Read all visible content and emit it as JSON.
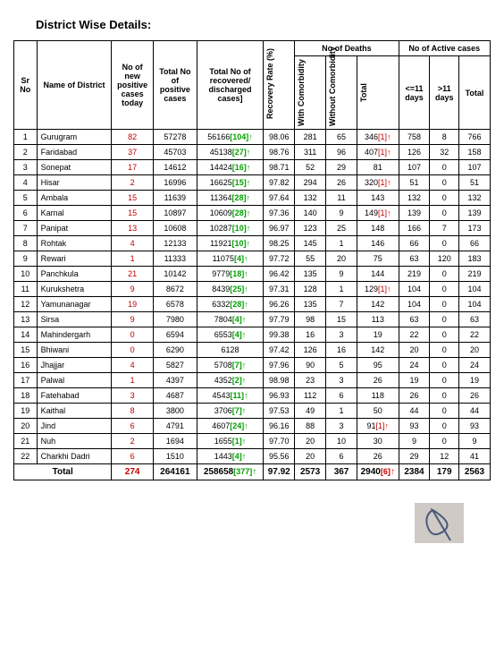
{
  "title": "District Wise Details:",
  "columns": {
    "sr": "Sr No",
    "name": "Name of District",
    "new": "No of new positive cases today",
    "totalpos": "Total No of positive cases",
    "recovered": "Total No of recovered/ discharged cases]",
    "rate": "Recovery Rate (%)",
    "deaths_group": "No of Deaths",
    "with_com": "With Comorbidity",
    "without_com": "Without Comorbidity",
    "deaths_total": "Total",
    "active_group": "No of Active cases",
    "le11": "<=11 days",
    "gt11": ">11 days",
    "active_total": "Total"
  },
  "col_widths": {
    "sr": "22px",
    "name": "70px",
    "new": "40px",
    "totalpos": "40px",
    "recovered": "62px",
    "rate": "30px",
    "withc": "30px",
    "withoutc": "30px",
    "dtotal": "38px",
    "le11": "30px",
    "gt11": "28px",
    "atotal": "30px"
  },
  "rows": [
    {
      "sr": 1,
      "name": "Gurugram",
      "new": "82",
      "totalpos": "57278",
      "rec": "56166",
      "recb": "[104]",
      "recarrow": "↑",
      "rate": "98.06",
      "wc": "281",
      "woc": "65",
      "dt": "346",
      "dtb": "[1]",
      "dtarrow": "↑",
      "le": "758",
      "gt": "8",
      "at": "766"
    },
    {
      "sr": 2,
      "name": "Faridabad",
      "new": "37",
      "totalpos": "45703",
      "rec": "45138",
      "recb": "[27]",
      "recarrow": "↑",
      "rate": "98.76",
      "wc": "311",
      "woc": "96",
      "dt": "407",
      "dtb": "[1]",
      "dtarrow": "↑",
      "le": "126",
      "gt": "32",
      "at": "158"
    },
    {
      "sr": 3,
      "name": "Sonepat",
      "new": "17",
      "totalpos": "14612",
      "rec": "14424",
      "recb": "[16]",
      "recarrow": "↑",
      "rate": "98.71",
      "wc": "52",
      "woc": "29",
      "dt": "81",
      "dtb": "",
      "dtarrow": "",
      "le": "107",
      "gt": "0",
      "at": "107"
    },
    {
      "sr": 4,
      "name": "Hisar",
      "new": "2",
      "totalpos": "16996",
      "rec": "16625",
      "recb": "[15]",
      "recarrow": "↑",
      "rate": "97.82",
      "wc": "294",
      "woc": "26",
      "dt": "320",
      "dtb": "[1]",
      "dtarrow": "↑",
      "le": "51",
      "gt": "0",
      "at": "51"
    },
    {
      "sr": 5,
      "name": "Ambala",
      "new": "15",
      "totalpos": "11639",
      "rec": "11364",
      "recb": "[28]",
      "recarrow": "↑",
      "rate": "97.64",
      "wc": "132",
      "woc": "11",
      "dt": "143",
      "dtb": "",
      "dtarrow": "",
      "le": "132",
      "gt": "0",
      "at": "132"
    },
    {
      "sr": 6,
      "name": "Karnal",
      "new": "15",
      "totalpos": "10897",
      "rec": "10609",
      "recb": "[28]",
      "recarrow": "↑",
      "rate": "97.36",
      "wc": "140",
      "woc": "9",
      "dt": "149",
      "dtb": "[1]",
      "dtarrow": "↑",
      "le": "139",
      "gt": "0",
      "at": "139"
    },
    {
      "sr": 7,
      "name": "Panipat",
      "new": "13",
      "totalpos": "10608",
      "rec": "10287",
      "recb": "[10]",
      "recarrow": "↑",
      "rate": "96.97",
      "wc": "123",
      "woc": "25",
      "dt": "148",
      "dtb": "",
      "dtarrow": "",
      "le": "166",
      "gt": "7",
      "at": "173"
    },
    {
      "sr": 8,
      "name": "Rohtak",
      "new": "4",
      "totalpos": "12133",
      "rec": "11921",
      "recb": "[10]",
      "recarrow": "↑",
      "rate": "98.25",
      "wc": "145",
      "woc": "1",
      "dt": "146",
      "dtb": "",
      "dtarrow": "",
      "le": "66",
      "gt": "0",
      "at": "66"
    },
    {
      "sr": 9,
      "name": "Rewari",
      "new": "1",
      "totalpos": "11333",
      "rec": "11075",
      "recb": "[4]",
      "recarrow": "↑",
      "rate": "97.72",
      "wc": "55",
      "woc": "20",
      "dt": "75",
      "dtb": "",
      "dtarrow": "",
      "le": "63",
      "gt": "120",
      "at": "183"
    },
    {
      "sr": 10,
      "name": "Panchkula",
      "new": "21",
      "totalpos": "10142",
      "rec": "9779",
      "recb": "[18]",
      "recarrow": "↑",
      "rate": "96.42",
      "wc": "135",
      "woc": "9",
      "dt": "144",
      "dtb": "",
      "dtarrow": "",
      "le": "219",
      "gt": "0",
      "at": "219"
    },
    {
      "sr": 11,
      "name": "Kurukshetra",
      "new": "9",
      "totalpos": "8672",
      "rec": "8439",
      "recb": "[25]",
      "recarrow": "↑",
      "rate": "97.31",
      "wc": "128",
      "woc": "1",
      "dt": "129",
      "dtb": "[1]",
      "dtarrow": "↑",
      "le": "104",
      "gt": "0",
      "at": "104"
    },
    {
      "sr": 12,
      "name": "Yamunanagar",
      "new": "19",
      "totalpos": "6578",
      "rec": "6332",
      "recb": "[28]",
      "recarrow": "↑",
      "rate": "96.26",
      "wc": "135",
      "woc": "7",
      "dt": "142",
      "dtb": "",
      "dtarrow": "",
      "le": "104",
      "gt": "0",
      "at": "104"
    },
    {
      "sr": 13,
      "name": "Sirsa",
      "new": "9",
      "totalpos": "7980",
      "rec": "7804",
      "recb": "[4]",
      "recarrow": "↑",
      "rate": "97.79",
      "wc": "98",
      "woc": "15",
      "dt": "113",
      "dtb": "",
      "dtarrow": "",
      "le": "63",
      "gt": "0",
      "at": "63"
    },
    {
      "sr": 14,
      "name": "Mahindergarh",
      "new": "0",
      "totalpos": "6594",
      "rec": "6553",
      "recb": "[4]",
      "recarrow": "↑",
      "rate": "99.38",
      "wc": "16",
      "woc": "3",
      "dt": "19",
      "dtb": "",
      "dtarrow": "",
      "le": "22",
      "gt": "0",
      "at": "22"
    },
    {
      "sr": 15,
      "name": "Bhiwani",
      "new": "0",
      "totalpos": "6290",
      "rec": "6128",
      "recb": "",
      "recarrow": "",
      "rate": "97.42",
      "wc": "126",
      "woc": "16",
      "dt": "142",
      "dtb": "",
      "dtarrow": "",
      "le": "20",
      "gt": "0",
      "at": "20"
    },
    {
      "sr": 16,
      "name": "Jhajjar",
      "new": "4",
      "totalpos": "5827",
      "rec": "5708",
      "recb": "[7]",
      "recarrow": "↑",
      "rate": "97.96",
      "wc": "90",
      "woc": "5",
      "dt": "95",
      "dtb": "",
      "dtarrow": "",
      "le": "24",
      "gt": "0",
      "at": "24"
    },
    {
      "sr": 17,
      "name": "Palwal",
      "new": "1",
      "totalpos": "4397",
      "rec": "4352",
      "recb": "[2]",
      "recarrow": "↑",
      "rate": "98.98",
      "wc": "23",
      "woc": "3",
      "dt": "26",
      "dtb": "",
      "dtarrow": "",
      "le": "19",
      "gt": "0",
      "at": "19"
    },
    {
      "sr": 18,
      "name": "Fatehabad",
      "new": "3",
      "totalpos": "4687",
      "rec": "4543",
      "recb": "[11]",
      "recarrow": "↑",
      "rate": "96.93",
      "wc": "112",
      "woc": "6",
      "dt": "118",
      "dtb": "",
      "dtarrow": "",
      "le": "26",
      "gt": "0",
      "at": "26"
    },
    {
      "sr": 19,
      "name": "Kaithal",
      "new": "8",
      "totalpos": "3800",
      "rec": "3706",
      "recb": "[7]",
      "recarrow": "↑",
      "rate": "97.53",
      "wc": "49",
      "woc": "1",
      "dt": "50",
      "dtb": "",
      "dtarrow": "",
      "le": "44",
      "gt": "0",
      "at": "44"
    },
    {
      "sr": 20,
      "name": "Jind",
      "new": "6",
      "totalpos": "4791",
      "rec": "4607",
      "recb": "[24]",
      "recarrow": "↑",
      "rate": "96.16",
      "wc": "88",
      "woc": "3",
      "dt": "91",
      "dtb": "[1]",
      "dtarrow": "↑",
      "le": "93",
      "gt": "0",
      "at": "93"
    },
    {
      "sr": 21,
      "name": "Nuh",
      "new": "2",
      "totalpos": "1694",
      "rec": "1655",
      "recb": "[1]",
      "recarrow": "↑",
      "rate": "97.70",
      "wc": "20",
      "woc": "10",
      "dt": "30",
      "dtb": "",
      "dtarrow": "",
      "le": "9",
      "gt": "0",
      "at": "9"
    },
    {
      "sr": 22,
      "name": "Charkhi Dadri",
      "new": "6",
      "totalpos": "1510",
      "rec": "1443",
      "recb": "[4]",
      "recarrow": "↑",
      "rate": "95.56",
      "wc": "20",
      "woc": "6",
      "dt": "26",
      "dtb": "",
      "dtarrow": "",
      "le": "29",
      "gt": "12",
      "at": "41"
    }
  ],
  "total": {
    "label": "Total",
    "new": "274",
    "totalpos": "264161",
    "rec": "258658",
    "recb": "[377]",
    "recarrow": "↑",
    "rate": "97.92",
    "wc": "2573",
    "woc": "367",
    "dt": "2940",
    "dtb": "[6]",
    "dtarrow": "↑",
    "le": "2384",
    "gt": "179",
    "at": "2563"
  },
  "colors": {
    "red": "#c00000",
    "green": "#00a000",
    "redarrow": "#ff0000",
    "black": "#000000",
    "bg": "#ffffff",
    "signbox": "#cfcac6",
    "signstroke": "#4a5a7a"
  }
}
